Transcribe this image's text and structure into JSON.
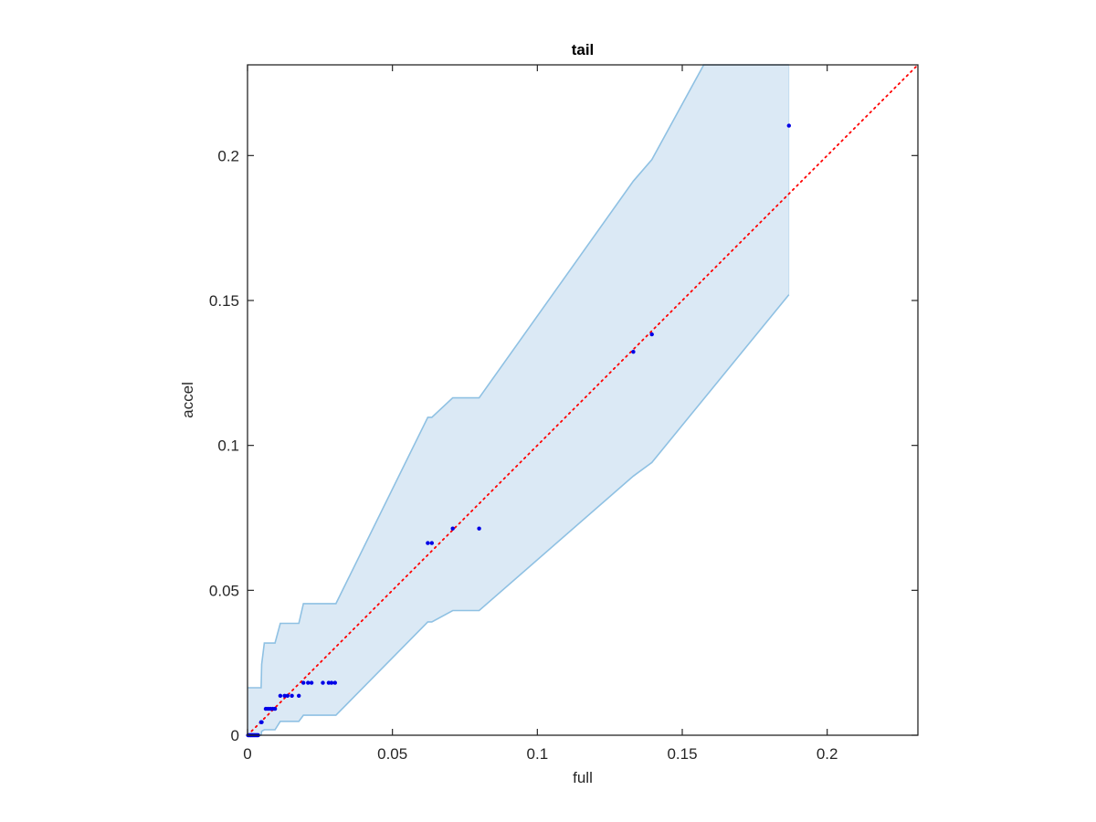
{
  "chart_data": {
    "type": "scatter",
    "title": "tail",
    "xlabel": "full",
    "ylabel": "accel",
    "xlim": [
      0,
      0.2313
    ],
    "ylim": [
      0,
      0.2313
    ],
    "xticks": [
      0,
      0.05,
      0.1,
      0.15,
      0.2
    ],
    "xtick_labels": [
      "0",
      "0.05",
      "0.1",
      "0.15",
      "0.2"
    ],
    "yticks": [
      0,
      0.05,
      0.1,
      0.15,
      0.2
    ],
    "ytick_labels": [
      "0",
      "0.05",
      "0.1",
      "0.15",
      "0.2"
    ],
    "grid": false,
    "box": true,
    "colors": {
      "points": "#0000e6",
      "reference_line": "#ff0000",
      "band_fill": "#dbe9f5",
      "band_edge": "#8fc1e3",
      "axes": "#262626"
    },
    "band": {
      "upper": [
        [
          0,
          0.0164
        ],
        [
          0.0047,
          0.0164
        ],
        [
          0.0049,
          0.0245
        ],
        [
          0.0058,
          0.0318
        ],
        [
          0.0095,
          0.0318
        ],
        [
          0.0113,
          0.0386
        ],
        [
          0.0177,
          0.0386
        ],
        [
          0.0193,
          0.0454
        ],
        [
          0.0305,
          0.0454
        ],
        [
          0.0622,
          0.1097
        ],
        [
          0.0636,
          0.1097
        ],
        [
          0.0708,
          0.1164
        ],
        [
          0.0799,
          0.1164
        ],
        [
          0.1331,
          0.1912
        ],
        [
          0.1395,
          0.1986
        ],
        [
          0.1574,
          0.2313
        ],
        [
          0.1868,
          0.2313
        ]
      ],
      "lower": [
        [
          0,
          0
        ],
        [
          0.0047,
          0
        ],
        [
          0.0049,
          0.0014
        ],
        [
          0.0058,
          0.0019
        ],
        [
          0.0095,
          0.0019
        ],
        [
          0.0113,
          0.0048
        ],
        [
          0.0177,
          0.0048
        ],
        [
          0.0193,
          0.0069
        ],
        [
          0.0305,
          0.0069
        ],
        [
          0.0622,
          0.0391
        ],
        [
          0.0636,
          0.0391
        ],
        [
          0.0708,
          0.043
        ],
        [
          0.0799,
          0.043
        ],
        [
          0.1331,
          0.0894
        ],
        [
          0.1395,
          0.0941
        ],
        [
          0.1868,
          0.152
        ]
      ]
    },
    "reference_line": {
      "from": [
        0,
        0
      ],
      "to": [
        0.2313,
        0.2313
      ],
      "style": "dotted"
    },
    "points": [
      [
        0.0002,
        0
      ],
      [
        0.0005,
        0
      ],
      [
        0.0008,
        0
      ],
      [
        0.0011,
        0
      ],
      [
        0.0013,
        0
      ],
      [
        0.0016,
        0
      ],
      [
        0.0019,
        0
      ],
      [
        0.0022,
        0
      ],
      [
        0.0025,
        0
      ],
      [
        0.0028,
        0
      ],
      [
        0.0031,
        0
      ],
      [
        0.0034,
        0
      ],
      [
        0.0037,
        0
      ],
      [
        0.0047,
        0.0045
      ],
      [
        0.0049,
        0.0045
      ],
      [
        0.0063,
        0.0091
      ],
      [
        0.0071,
        0.0091
      ],
      [
        0.0079,
        0.0091
      ],
      [
        0.0087,
        0.0091
      ],
      [
        0.0095,
        0.0091
      ],
      [
        0.0113,
        0.0136
      ],
      [
        0.0128,
        0.0136
      ],
      [
        0.0138,
        0.0136
      ],
      [
        0.0153,
        0.0136
      ],
      [
        0.0177,
        0.0136
      ],
      [
        0.0193,
        0.0181
      ],
      [
        0.0209,
        0.0181
      ],
      [
        0.0221,
        0.0181
      ],
      [
        0.026,
        0.0181
      ],
      [
        0.028,
        0.0181
      ],
      [
        0.029,
        0.0181
      ],
      [
        0.0302,
        0.0181
      ],
      [
        0.0622,
        0.0663
      ],
      [
        0.0636,
        0.0663
      ],
      [
        0.0708,
        0.0713
      ],
      [
        0.0799,
        0.0713
      ],
      [
        0.1331,
        0.1323
      ],
      [
        0.1395,
        0.1383
      ],
      [
        0.1868,
        0.2103
      ]
    ]
  }
}
